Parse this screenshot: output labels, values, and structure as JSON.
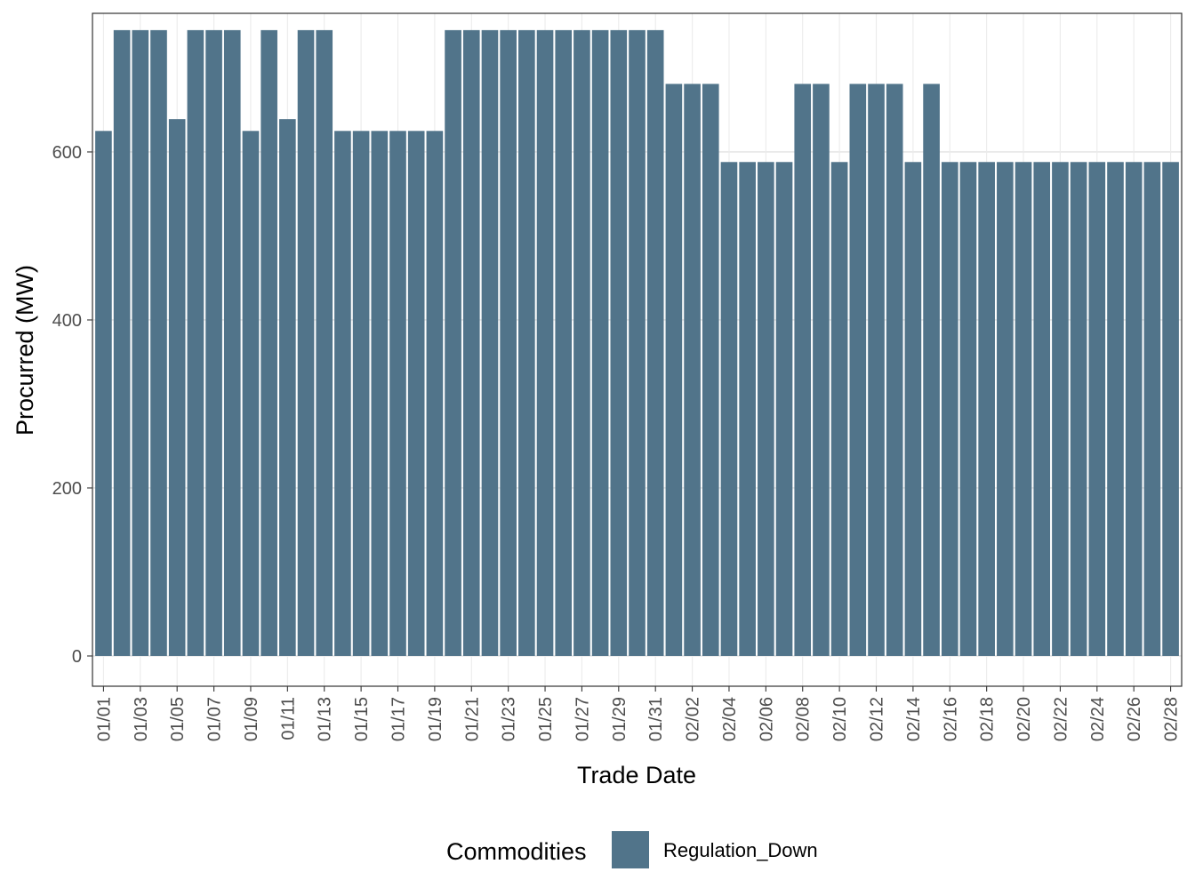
{
  "chart_data": {
    "type": "bar",
    "xlabel": "Trade Date",
    "ylabel": "Procurred (MW)",
    "ylim": [
      -36,
      765
    ],
    "yticks": [
      0,
      200,
      400,
      600
    ],
    "grid": true,
    "legend_placement": "bottom",
    "legend_title": "Commodities",
    "bar_color": "#51748a",
    "categories": [
      "01/01",
      "01/02",
      "01/03",
      "01/04",
      "01/05",
      "01/06",
      "01/07",
      "01/08",
      "01/09",
      "01/10",
      "01/11",
      "01/12",
      "01/13",
      "01/14",
      "01/15",
      "01/16",
      "01/17",
      "01/18",
      "01/19",
      "01/20",
      "01/21",
      "01/22",
      "01/23",
      "01/24",
      "01/25",
      "01/26",
      "01/27",
      "01/28",
      "01/29",
      "01/30",
      "01/31",
      "02/01",
      "02/02",
      "02/03",
      "02/04",
      "02/05",
      "02/06",
      "02/07",
      "02/08",
      "02/09",
      "02/10",
      "02/11",
      "02/12",
      "02/13",
      "02/14",
      "02/15",
      "02/16",
      "02/17",
      "02/18",
      "02/19",
      "02/20",
      "02/21",
      "02/22",
      "02/23",
      "02/24",
      "02/25",
      "02/26",
      "02/27",
      "02/28"
    ],
    "x_tick_labels": [
      "01/01",
      "01/03",
      "01/05",
      "01/07",
      "01/09",
      "01/11",
      "01/13",
      "01/15",
      "01/17",
      "01/19",
      "01/21",
      "01/23",
      "01/25",
      "01/27",
      "01/29",
      "01/31",
      "02/02",
      "02/04",
      "02/06",
      "02/08",
      "02/10",
      "02/12",
      "02/14",
      "02/16",
      "02/18",
      "02/20",
      "02/22",
      "02/24",
      "02/26",
      "02/28"
    ],
    "series": [
      {
        "name": "Regulation_Down",
        "values": [
          625,
          745,
          745,
          745,
          639,
          745,
          745,
          745,
          625,
          745,
          639,
          745,
          745,
          625,
          625,
          625,
          625,
          625,
          625,
          745,
          745,
          745,
          745,
          745,
          745,
          745,
          745,
          745,
          745,
          745,
          745,
          681,
          681,
          681,
          588,
          588,
          588,
          588,
          681,
          681,
          588,
          681,
          681,
          681,
          588,
          681,
          588,
          588,
          588,
          588,
          588,
          588,
          588,
          588,
          588,
          588,
          588,
          588,
          588
        ]
      }
    ]
  }
}
